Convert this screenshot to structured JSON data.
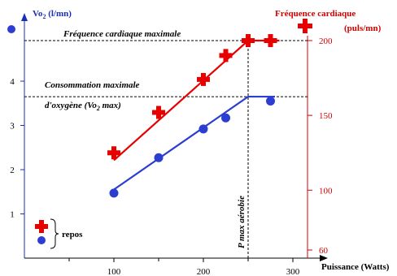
{
  "chart_data": {
    "type": "line",
    "xlabel": "Puissance (Watts)",
    "ylabel_left": "Vo",
    "ylabel_left_sub": "2",
    "ylabel_left_unit": " (l/mn)",
    "ylabel_right_line1": "Fréquence cardiaque",
    "ylabel_right_line2": "(puls/mn)",
    "x_ticks": [
      100,
      200,
      300
    ],
    "y_left_ticks": [
      1,
      2,
      3,
      4
    ],
    "y_right_ticks": [
      60,
      100,
      150,
      200
    ],
    "xlim": [
      0,
      340
    ],
    "ylim_left": [
      0,
      4.9
    ],
    "ylim_right": [
      60,
      200
    ],
    "annotations": {
      "hr_max_label": "Fréquence cardiaque maximale",
      "vo2_max_line1": "Consommation maximale",
      "vo2_max_line2_pre": "d'oxygène (Vo",
      "vo2_max_line2_sub": "2",
      "vo2_max_line2_post": " max)",
      "pmax_label": "P max aérobie",
      "hr_max_value": 200,
      "vo2_max_value": 3.65,
      "pmax_value": 250
    },
    "legend_label": "repos",
    "series": [
      {
        "marker": "plus",
        "axis": "right",
        "color": "#e60000",
        "points": [
          [
            100,
            125
          ],
          [
            150,
            152
          ],
          [
            200,
            174
          ],
          [
            225,
            190
          ],
          [
            250,
            200
          ],
          [
            275,
            200
          ]
        ],
        "fit": [
          [
            100,
            120
          ],
          [
            250,
            200
          ],
          [
            285,
            200
          ]
        ]
      },
      {
        "marker": "circle",
        "axis": "left",
        "color": "#2b3ed1",
        "points": [
          [
            100,
            1.47
          ],
          [
            150,
            2.27
          ],
          [
            200,
            2.92
          ],
          [
            225,
            3.17
          ],
          [
            275,
            3.55
          ]
        ],
        "fit": [
          [
            100,
            1.55
          ],
          [
            250,
            3.65
          ],
          [
            280,
            3.65
          ]
        ]
      }
    ]
  }
}
